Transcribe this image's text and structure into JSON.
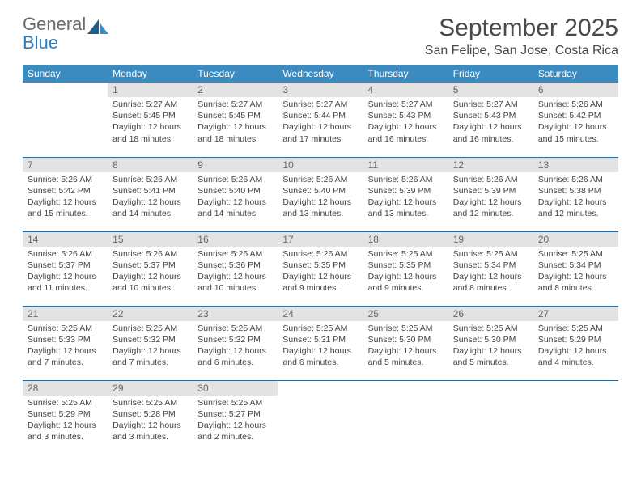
{
  "brand": {
    "word1": "General",
    "word2": "Blue"
  },
  "title": "September 2025",
  "location": "San Felipe, San Jose, Costa Rica",
  "colors": {
    "header_bg": "#3b8ac0",
    "header_text": "#ffffff",
    "daynum_bg": "#e3e3e3",
    "daynum_text": "#666666",
    "rule": "#2f6a99",
    "body_text": "#444444",
    "logo_gray": "#6a6a6a",
    "logo_blue": "#2b7fc2"
  },
  "day_labels": [
    "Sunday",
    "Monday",
    "Tuesday",
    "Wednesday",
    "Thursday",
    "Friday",
    "Saturday"
  ],
  "grid": {
    "first_weekday_index": 1,
    "days_in_month": 30
  },
  "days": {
    "1": {
      "sunrise": "5:27 AM",
      "sunset": "5:45 PM",
      "daylight": "12 hours and 18 minutes."
    },
    "2": {
      "sunrise": "5:27 AM",
      "sunset": "5:45 PM",
      "daylight": "12 hours and 18 minutes."
    },
    "3": {
      "sunrise": "5:27 AM",
      "sunset": "5:44 PM",
      "daylight": "12 hours and 17 minutes."
    },
    "4": {
      "sunrise": "5:27 AM",
      "sunset": "5:43 PM",
      "daylight": "12 hours and 16 minutes."
    },
    "5": {
      "sunrise": "5:27 AM",
      "sunset": "5:43 PM",
      "daylight": "12 hours and 16 minutes."
    },
    "6": {
      "sunrise": "5:26 AM",
      "sunset": "5:42 PM",
      "daylight": "12 hours and 15 minutes."
    },
    "7": {
      "sunrise": "5:26 AM",
      "sunset": "5:42 PM",
      "daylight": "12 hours and 15 minutes."
    },
    "8": {
      "sunrise": "5:26 AM",
      "sunset": "5:41 PM",
      "daylight": "12 hours and 14 minutes."
    },
    "9": {
      "sunrise": "5:26 AM",
      "sunset": "5:40 PM",
      "daylight": "12 hours and 14 minutes."
    },
    "10": {
      "sunrise": "5:26 AM",
      "sunset": "5:40 PM",
      "daylight": "12 hours and 13 minutes."
    },
    "11": {
      "sunrise": "5:26 AM",
      "sunset": "5:39 PM",
      "daylight": "12 hours and 13 minutes."
    },
    "12": {
      "sunrise": "5:26 AM",
      "sunset": "5:39 PM",
      "daylight": "12 hours and 12 minutes."
    },
    "13": {
      "sunrise": "5:26 AM",
      "sunset": "5:38 PM",
      "daylight": "12 hours and 12 minutes."
    },
    "14": {
      "sunrise": "5:26 AM",
      "sunset": "5:37 PM",
      "daylight": "12 hours and 11 minutes."
    },
    "15": {
      "sunrise": "5:26 AM",
      "sunset": "5:37 PM",
      "daylight": "12 hours and 10 minutes."
    },
    "16": {
      "sunrise": "5:26 AM",
      "sunset": "5:36 PM",
      "daylight": "12 hours and 10 minutes."
    },
    "17": {
      "sunrise": "5:26 AM",
      "sunset": "5:35 PM",
      "daylight": "12 hours and 9 minutes."
    },
    "18": {
      "sunrise": "5:25 AM",
      "sunset": "5:35 PM",
      "daylight": "12 hours and 9 minutes."
    },
    "19": {
      "sunrise": "5:25 AM",
      "sunset": "5:34 PM",
      "daylight": "12 hours and 8 minutes."
    },
    "20": {
      "sunrise": "5:25 AM",
      "sunset": "5:34 PM",
      "daylight": "12 hours and 8 minutes."
    },
    "21": {
      "sunrise": "5:25 AM",
      "sunset": "5:33 PM",
      "daylight": "12 hours and 7 minutes."
    },
    "22": {
      "sunrise": "5:25 AM",
      "sunset": "5:32 PM",
      "daylight": "12 hours and 7 minutes."
    },
    "23": {
      "sunrise": "5:25 AM",
      "sunset": "5:32 PM",
      "daylight": "12 hours and 6 minutes."
    },
    "24": {
      "sunrise": "5:25 AM",
      "sunset": "5:31 PM",
      "daylight": "12 hours and 6 minutes."
    },
    "25": {
      "sunrise": "5:25 AM",
      "sunset": "5:30 PM",
      "daylight": "12 hours and 5 minutes."
    },
    "26": {
      "sunrise": "5:25 AM",
      "sunset": "5:30 PM",
      "daylight": "12 hours and 5 minutes."
    },
    "27": {
      "sunrise": "5:25 AM",
      "sunset": "5:29 PM",
      "daylight": "12 hours and 4 minutes."
    },
    "28": {
      "sunrise": "5:25 AM",
      "sunset": "5:29 PM",
      "daylight": "12 hours and 3 minutes."
    },
    "29": {
      "sunrise": "5:25 AM",
      "sunset": "5:28 PM",
      "daylight": "12 hours and 3 minutes."
    },
    "30": {
      "sunrise": "5:25 AM",
      "sunset": "5:27 PM",
      "daylight": "12 hours and 2 minutes."
    }
  },
  "labels": {
    "sunrise_prefix": "Sunrise: ",
    "sunset_prefix": "Sunset: ",
    "daylight_prefix": "Daylight: "
  }
}
